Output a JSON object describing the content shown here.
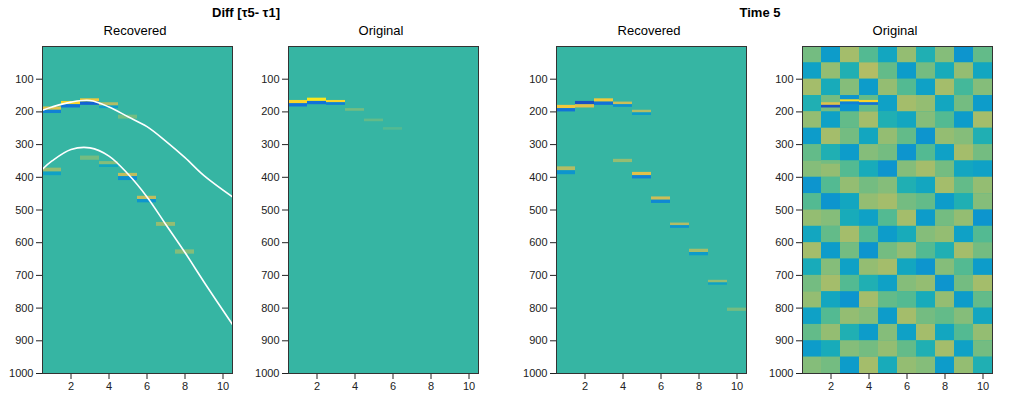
{
  "chart_data": [
    {
      "title": "Diff [τ5- τ1]",
      "panels": [
        {
          "type": "heatmap",
          "title": "Recovered",
          "xlim": [
            0.5,
            10.5
          ],
          "xticks": [
            2,
            4,
            6,
            8,
            10
          ],
          "ylim": [
            0,
            1000
          ],
          "yticks": [
            100,
            200,
            300,
            400,
            500,
            600,
            700,
            800,
            900,
            1000
          ],
          "color_range": [
            -1,
            1
          ],
          "background": 0,
          "cells": [
            {
              "x": 1,
              "y0": 185,
              "y1": 195,
              "value": 0.6
            },
            {
              "x": 1,
              "y0": 195,
              "y1": 205,
              "value": -0.5
            },
            {
              "x": 2,
              "y0": 168,
              "y1": 178,
              "value": 0.8
            },
            {
              "x": 2,
              "y0": 178,
              "y1": 188,
              "value": -0.6
            },
            {
              "x": 3,
              "y0": 160,
              "y1": 170,
              "value": 0.7
            },
            {
              "x": 3,
              "y0": 170,
              "y1": 180,
              "value": -0.7
            },
            {
              "x": 4,
              "y0": 172,
              "y1": 182,
              "value": 0.4
            },
            {
              "x": 4,
              "y0": 182,
              "y1": 190,
              "value": -0.3
            },
            {
              "x": 5,
              "y0": 210,
              "y1": 222,
              "value": 0.2
            },
            {
              "x": 1,
              "y0": 372,
              "y1": 384,
              "value": 0.3
            },
            {
              "x": 1,
              "y0": 384,
              "y1": 395,
              "value": -0.25
            },
            {
              "x": 3,
              "y0": 335,
              "y1": 348,
              "value": 0.2
            },
            {
              "x": 4,
              "y0": 352,
              "y1": 362,
              "value": 0.25
            },
            {
              "x": 4,
              "y0": 362,
              "y1": 370,
              "value": -0.2
            },
            {
              "x": 5,
              "y0": 388,
              "y1": 398,
              "value": 0.45
            },
            {
              "x": 5,
              "y0": 398,
              "y1": 410,
              "value": -0.4
            },
            {
              "x": 6,
              "y0": 458,
              "y1": 468,
              "value": 0.45
            },
            {
              "x": 6,
              "y0": 468,
              "y1": 478,
              "value": -0.35
            },
            {
              "x": 7,
              "y0": 538,
              "y1": 550,
              "value": 0.3
            },
            {
              "x": 8,
              "y0": 622,
              "y1": 635,
              "value": 0.25
            }
          ],
          "curves": [
            {
              "color": "#ffffff",
              "x": [
                0.5,
                1,
                2,
                3,
                4,
                5,
                6,
                7,
                8,
                9,
                10.5
              ],
              "y": [
                195,
                185,
                170,
                165,
                185,
                215,
                245,
                290,
                340,
                395,
                460
              ]
            },
            {
              "color": "#ffffff",
              "x": [
                0.5,
                1,
                2,
                3,
                4,
                5,
                6,
                7,
                8,
                9,
                10.5
              ],
              "y": [
                375,
                350,
                315,
                310,
                335,
                390,
                460,
                545,
                630,
                720,
                850
              ]
            }
          ]
        },
        {
          "type": "heatmap",
          "title": "Original",
          "xlim": [
            0.5,
            10.5
          ],
          "xticks": [
            2,
            4,
            6,
            8,
            10
          ],
          "ylim": [
            0,
            1000
          ],
          "yticks": [
            100,
            200,
            300,
            400,
            500,
            600,
            700,
            800,
            900,
            1000
          ],
          "color_range": [
            -1,
            1
          ],
          "background": 0,
          "cells": [
            {
              "x": 1,
              "y0": 165,
              "y1": 175,
              "value": 0.8
            },
            {
              "x": 1,
              "y0": 175,
              "y1": 185,
              "value": -0.6
            },
            {
              "x": 2,
              "y0": 158,
              "y1": 168,
              "value": 0.9
            },
            {
              "x": 2,
              "y0": 168,
              "y1": 178,
              "value": -0.6
            },
            {
              "x": 3,
              "y0": 165,
              "y1": 172,
              "value": 0.8
            },
            {
              "x": 3,
              "y0": 172,
              "y1": 180,
              "value": -0.5
            },
            {
              "x": 4,
              "y0": 190,
              "y1": 198,
              "value": 0.2
            },
            {
              "x": 5,
              "y0": 222,
              "y1": 230,
              "value": 0.15
            },
            {
              "x": 6,
              "y0": 248,
              "y1": 256,
              "value": 0.1
            }
          ]
        }
      ]
    },
    {
      "title": "Time 5",
      "panels": [
        {
          "type": "heatmap",
          "title": "Recovered",
          "xlim": [
            0.5,
            10.5
          ],
          "xticks": [
            2,
            4,
            6,
            8,
            10
          ],
          "ylim": [
            0,
            1000
          ],
          "yticks": [
            100,
            200,
            300,
            400,
            500,
            600,
            700,
            800,
            900,
            1000
          ],
          "color_range": [
            -1,
            1
          ],
          "background": 0,
          "cells": [
            {
              "x": 1,
              "y0": 180,
              "y1": 190,
              "value": 0.7
            },
            {
              "x": 1,
              "y0": 190,
              "y1": 200,
              "value": -0.6
            },
            {
              "x": 2,
              "y0": 168,
              "y1": 178,
              "value": -0.8
            },
            {
              "x": 2,
              "y0": 178,
              "y1": 188,
              "value": 0.6
            },
            {
              "x": 3,
              "y0": 160,
              "y1": 170,
              "value": 0.7
            },
            {
              "x": 3,
              "y0": 170,
              "y1": 180,
              "value": -0.6
            },
            {
              "x": 4,
              "y0": 170,
              "y1": 178,
              "value": 0.5
            },
            {
              "x": 4,
              "y0": 178,
              "y1": 186,
              "value": -0.4
            },
            {
              "x": 5,
              "y0": 195,
              "y1": 203,
              "value": 0.4
            },
            {
              "x": 5,
              "y0": 203,
              "y1": 211,
              "value": -0.3
            },
            {
              "x": 1,
              "y0": 368,
              "y1": 380,
              "value": 0.4
            },
            {
              "x": 1,
              "y0": 380,
              "y1": 392,
              "value": -0.35
            },
            {
              "x": 4,
              "y0": 345,
              "y1": 355,
              "value": 0.3
            },
            {
              "x": 5,
              "y0": 385,
              "y1": 395,
              "value": 0.6
            },
            {
              "x": 5,
              "y0": 395,
              "y1": 405,
              "value": -0.5
            },
            {
              "x": 6,
              "y0": 460,
              "y1": 470,
              "value": 0.5
            },
            {
              "x": 6,
              "y0": 470,
              "y1": 480,
              "value": -0.45
            },
            {
              "x": 7,
              "y0": 540,
              "y1": 548,
              "value": 0.4
            },
            {
              "x": 7,
              "y0": 548,
              "y1": 556,
              "value": -0.35
            },
            {
              "x": 8,
              "y0": 620,
              "y1": 630,
              "value": 0.35
            },
            {
              "x": 8,
              "y0": 630,
              "y1": 640,
              "value": -0.3
            },
            {
              "x": 9,
              "y0": 715,
              "y1": 723,
              "value": 0.3
            },
            {
              "x": 9,
              "y0": 723,
              "y1": 730,
              "value": -0.25
            },
            {
              "x": 10,
              "y0": 800,
              "y1": 810,
              "value": 0.2
            }
          ]
        },
        {
          "type": "heatmap",
          "title": "Original",
          "xlim": [
            0.5,
            10.5
          ],
          "xticks": [
            2,
            4,
            6,
            8,
            10
          ],
          "ylim": [
            0,
            1000
          ],
          "yticks": [
            100,
            200,
            300,
            400,
            500,
            600,
            700,
            800,
            900,
            1000
          ],
          "color_range": [
            -1,
            1
          ],
          "background": 0,
          "grid": {
            "x": [
              1,
              2,
              3,
              4,
              5,
              6,
              7,
              8,
              9,
              10
            ],
            "y_edges": [
              0,
              50,
              100,
              150,
              200,
              250,
              300,
              350,
              400,
              450,
              500,
              550,
              600,
              650,
              700,
              750,
              800,
              850,
              900,
              950,
              1000
            ],
            "values": [
              [
                0.2,
                -0.3,
                0.35,
                0.1,
                -0.2,
                0.3,
                -0.1,
                0.25,
                -0.35,
                0.15
              ],
              [
                -0.25,
                0.3,
                -0.1,
                0.4,
                0.15,
                -0.3,
                0.2,
                -0.15,
                0.3,
                -0.2
              ],
              [
                0.35,
                -0.15,
                0.25,
                -0.3,
                0.3,
                0.1,
                -0.25,
                0.35,
                0.05,
                0.25
              ],
              [
                -0.1,
                0.2,
                -0.35,
                0.15,
                -0.25,
                0.35,
                0.3,
                -0.2,
                0.2,
                -0.3
              ],
              [
                0.3,
                -0.25,
                0.15,
                0.35,
                -0.1,
                -0.2,
                0.25,
                0.1,
                -0.3,
                0.35
              ],
              [
                -0.3,
                0.35,
                0.2,
                -0.2,
                0.3,
                0.15,
                -0.35,
                0.3,
                0.25,
                -0.1
              ],
              [
                0.15,
                -0.1,
                -0.3,
                0.25,
                0.2,
                -0.35,
                0.1,
                -0.25,
                0.35,
                0.2
              ],
              [
                0.25,
                0.3,
                0.1,
                -0.15,
                -0.35,
                0.25,
                0.35,
                0.2,
                -0.2,
                -0.25
              ],
              [
                -0.35,
                0.1,
                0.3,
                0.2,
                0.25,
                -0.1,
                -0.2,
                0.35,
                0.15,
                0.3
              ],
              [
                0.1,
                -0.35,
                -0.2,
                0.3,
                0.35,
                0.2,
                0.15,
                -0.3,
                -0.1,
                0.25
              ],
              [
                0.3,
                0.25,
                -0.15,
                -0.25,
                0.1,
                0.35,
                -0.3,
                0.2,
                0.3,
                -0.35
              ],
              [
                -0.2,
                0.15,
                0.35,
                0.1,
                -0.3,
                -0.15,
                0.25,
                0.3,
                -0.25,
                0.1
              ],
              [
                0.35,
                -0.3,
                0.2,
                -0.35,
                0.2,
                0.3,
                0.1,
                -0.1,
                0.35,
                0.2
              ],
              [
                -0.15,
                0.25,
                -0.25,
                0.3,
                0.35,
                -0.2,
                -0.35,
                0.25,
                0.1,
                -0.3
              ],
              [
                0.2,
                0.35,
                0.1,
                -0.1,
                -0.25,
                0.25,
                0.3,
                -0.35,
                0.2,
                0.35
              ],
              [
                0.3,
                -0.2,
                -0.35,
                0.35,
                0.15,
                0.1,
                -0.15,
                0.3,
                -0.3,
                0.15
              ],
              [
                -0.25,
                0.1,
                0.3,
                0.25,
                -0.3,
                0.35,
                0.2,
                0.15,
                0.25,
                -0.2
              ],
              [
                0.15,
                0.3,
                -0.1,
                -0.3,
                0.25,
                -0.25,
                0.35,
                -0.2,
                0.1,
                0.3
              ],
              [
                -0.3,
                -0.15,
                0.25,
                0.2,
                0.3,
                0.15,
                -0.1,
                0.35,
                -0.25,
                0.2
              ],
              [
                0.25,
                0.2,
                -0.3,
                0.35,
                -0.15,
                0.3,
                0.25,
                -0.3,
                0.3,
                -0.1
              ]
            ]
          },
          "cells": [
            {
              "x": 1,
              "y0": 200,
              "y1": 208,
              "value": 0.3
            },
            {
              "x": 2,
              "y0": 172,
              "y1": 180,
              "value": 0.6
            },
            {
              "x": 2,
              "y0": 180,
              "y1": 188,
              "value": -0.8
            },
            {
              "x": 3,
              "y0": 163,
              "y1": 170,
              "value": 0.85
            },
            {
              "x": 3,
              "y0": 170,
              "y1": 178,
              "value": -0.5
            },
            {
              "x": 4,
              "y0": 165,
              "y1": 172,
              "value": 0.8
            },
            {
              "x": 4,
              "y0": 172,
              "y1": 180,
              "value": -0.6
            },
            {
              "x": 2,
              "y0": 350,
              "y1": 360,
              "value": 0.2
            }
          ]
        }
      ]
    }
  ]
}
